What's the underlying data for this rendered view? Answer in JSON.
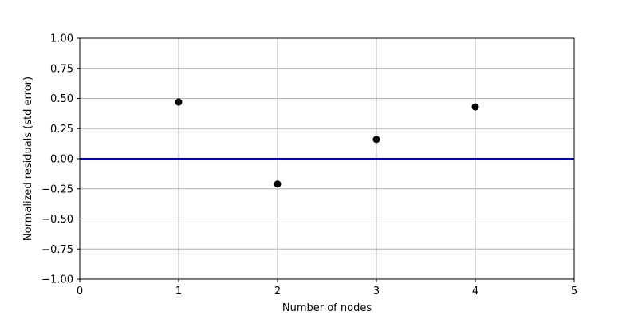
{
  "chart_data": {
    "type": "scatter",
    "xlabel": "Number of nodes",
    "ylabel": "Normalized residuals (std error)",
    "xlim": [
      0,
      5
    ],
    "ylim": [
      -1.0,
      1.0
    ],
    "x_ticks": [
      0,
      1,
      2,
      3,
      4,
      5
    ],
    "x_tick_labels": [
      "0",
      "1",
      "2",
      "3",
      "4",
      "5"
    ],
    "y_ticks": [
      -1.0,
      -0.75,
      -0.5,
      -0.25,
      0.0,
      0.25,
      0.5,
      0.75,
      1.0
    ],
    "y_tick_labels": [
      "−1.00",
      "−0.75",
      "−0.50",
      "−0.25",
      "0.00",
      "0.25",
      "0.50",
      "0.75",
      "1.00"
    ],
    "grid": true,
    "points": [
      {
        "x": 1,
        "y": 0.47
      },
      {
        "x": 2,
        "y": -0.21
      },
      {
        "x": 3,
        "y": 0.16
      },
      {
        "x": 4,
        "y": 0.43
      }
    ],
    "reference_line": {
      "y": 0.0,
      "color": "#0000cc"
    },
    "marker_color": "#000000"
  }
}
